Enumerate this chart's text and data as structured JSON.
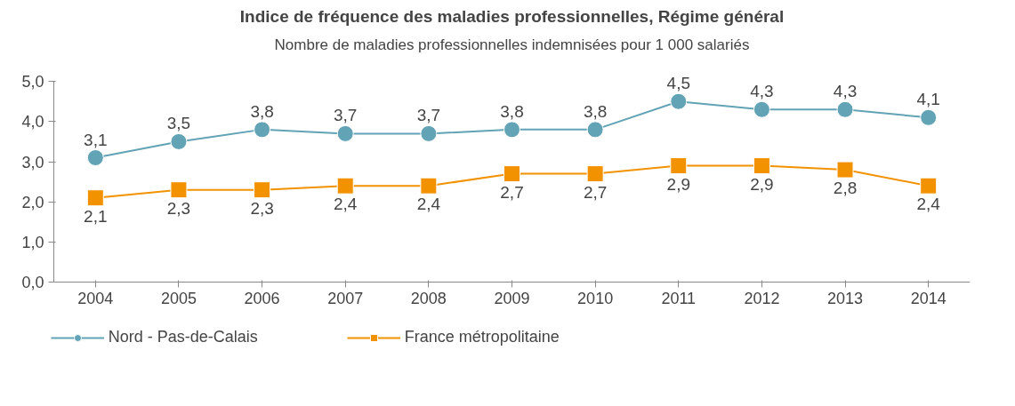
{
  "chart_data": {
    "type": "line",
    "title": "Indice de fréquence des maladies professionnelles, Régime général",
    "subtitle": "Nombre de maladies professionnelles indemnisées pour 1 000 salariés",
    "categories": [
      "2004",
      "2005",
      "2006",
      "2007",
      "2008",
      "2009",
      "2010",
      "2011",
      "2012",
      "2013",
      "2014"
    ],
    "series": [
      {
        "name": "Nord - Pas-de-Calais",
        "color": "#62a3b5",
        "marker": "circle",
        "values": [
          3.1,
          3.5,
          3.8,
          3.7,
          3.7,
          3.8,
          3.8,
          4.5,
          4.3,
          4.3,
          4.1
        ],
        "value_labels": [
          "3,1",
          "3,5",
          "3,8",
          "3,7",
          "3,7",
          "3,8",
          "3,8",
          "4,5",
          "4,3",
          "4,3",
          "4,1"
        ]
      },
      {
        "name": "France métropolitaine",
        "color": "#f39200",
        "marker": "square",
        "values": [
          2.1,
          2.3,
          2.3,
          2.4,
          2.4,
          2.7,
          2.7,
          2.9,
          2.9,
          2.8,
          2.4
        ],
        "value_labels": [
          "2,1",
          "2,3",
          "2,3",
          "2,4",
          "2,4",
          "2,7",
          "2,7",
          "2,9",
          "2,9",
          "2,8",
          "2,4"
        ]
      }
    ],
    "ylim": [
      0,
      5
    ],
    "yticks": [
      {
        "value": 0,
        "label": "0,0"
      },
      {
        "value": 1,
        "label": "1,0"
      },
      {
        "value": 2,
        "label": "2,0"
      },
      {
        "value": 3,
        "label": "3,0"
      },
      {
        "value": 4,
        "label": "4,0"
      },
      {
        "value": 5,
        "label": "5,0"
      }
    ],
    "grid": false,
    "legend": "bottom left",
    "line_style": "solid"
  }
}
